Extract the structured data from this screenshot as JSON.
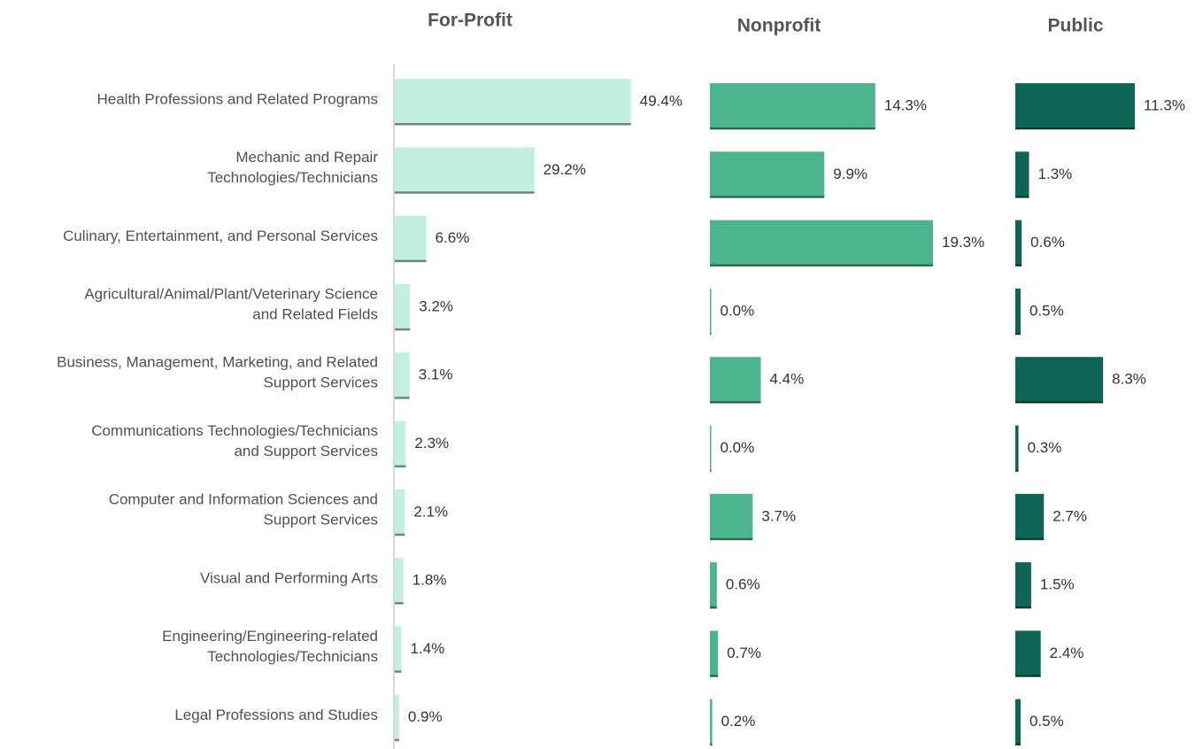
{
  "chart_data": {
    "type": "bar",
    "orientation": "horizontal",
    "categories": [
      "Health Professions and Related Programs",
      "Mechanic and Repair\nTechnologies/Technicians",
      "Culinary, Entertainment, and Personal Services",
      "Agricultural/Animal/Plant/Veterinary Science\nand Related Fields",
      "Business, Management, Marketing, and Related\nSupport Services",
      "Communications Technologies/Technicians\nand Support Services",
      "Computer and Information Sciences and\nSupport Services",
      "Visual and Performing Arts",
      "Engineering/Engineering-related\nTechnologies/Technicians",
      "Legal Professions and Studies"
    ],
    "series": [
      {
        "name": "For-Profit",
        "color": "#c2f0e0",
        "values": [
          49.4,
          29.2,
          6.6,
          3.2,
          3.1,
          2.3,
          2.1,
          1.8,
          1.4,
          0.9
        ],
        "value_labels": [
          "49.4%",
          "29.2%",
          "6.6%",
          "3.2%",
          "3.1%",
          "2.3%",
          "2.1%",
          "1.8%",
          "1.4%",
          "0.9%"
        ]
      },
      {
        "name": "Nonprofit",
        "color": "#4bb58e",
        "values": [
          14.3,
          9.9,
          19.3,
          0.0,
          4.4,
          0.0,
          3.7,
          0.6,
          0.7,
          0.2
        ],
        "value_labels": [
          "14.3%",
          "9.9%",
          "19.3%",
          "0.0%",
          "4.4%",
          "0.0%",
          "3.7%",
          "0.6%",
          "0.7%",
          "0.2%"
        ]
      },
      {
        "name": "Public",
        "color": "#0d6655",
        "values": [
          11.3,
          1.3,
          0.6,
          0.5,
          8.3,
          0.3,
          2.7,
          1.5,
          2.4,
          0.5
        ],
        "value_labels": [
          "11.3%",
          "1.3%",
          "0.6%",
          "0.5%",
          "8.3%",
          "0.3%",
          "2.7%",
          "1.5%",
          "2.4%",
          "0.5%"
        ]
      }
    ]
  }
}
